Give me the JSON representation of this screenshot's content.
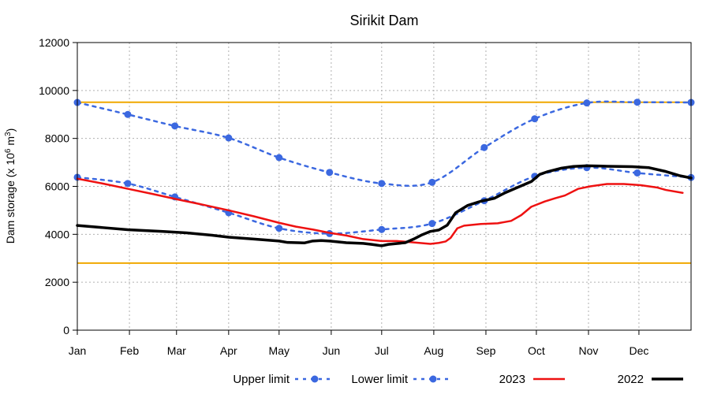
{
  "chart_data": {
    "type": "line",
    "title": "Sirikit Dam",
    "ylabel_main": "Dam storage (x 10",
    "ylabel_exp1": "6",
    "ylabel_unit": " m",
    "ylabel_exp2": "3",
    "ylabel_close": ")",
    "xlabel": "",
    "ylim": [
      0,
      12000
    ],
    "xlim": [
      0,
      365
    ],
    "y_ticks": [
      0,
      2000,
      4000,
      6000,
      8000,
      10000,
      12000
    ],
    "x_ticks": [
      {
        "label": "Jan",
        "day": 0
      },
      {
        "label": "Feb",
        "day": 31
      },
      {
        "label": "Mar",
        "day": 59
      },
      {
        "label": "Apr",
        "day": 90
      },
      {
        "label": "May",
        "day": 120
      },
      {
        "label": "Jun",
        "day": 151
      },
      {
        "label": "Jul",
        "day": 181
      },
      {
        "label": "Aug",
        "day": 212
      },
      {
        "label": "Sep",
        "day": 243
      },
      {
        "label": "Oct",
        "day": 273
      },
      {
        "label": "Nov",
        "day": 304
      },
      {
        "label": "Dec",
        "day": 334
      }
    ],
    "grid": true,
    "legend_position": "bottom",
    "reference_lines": [
      {
        "y": 9510,
        "color": "#f0a800"
      },
      {
        "y": 2800,
        "color": "#f0a800"
      }
    ],
    "series": [
      {
        "name": "Upper limit",
        "style": "dashed-markers",
        "color": "#3b68e0",
        "x": [
          0,
          30,
          58,
          90,
          120,
          150,
          181,
          211,
          242,
          272,
          303,
          333,
          365
        ],
        "y": [
          9500,
          9000,
          8520,
          8020,
          7200,
          6580,
          6120,
          6170,
          7620,
          8820,
          9480,
          9510,
          9500
        ]
      },
      {
        "name": "Lower limit",
        "style": "dashed-markers",
        "color": "#3b68e0",
        "x": [
          0,
          30,
          58,
          90,
          120,
          150,
          181,
          211,
          242,
          272,
          303,
          333,
          365
        ],
        "y": [
          6380,
          6120,
          5560,
          4900,
          4250,
          4030,
          4200,
          4450,
          5400,
          6420,
          6780,
          6560,
          6370
        ]
      },
      {
        "name": "2023",
        "style": "solid",
        "color": "#ee1111",
        "x": [
          0,
          15,
          30,
          45,
          60,
          75,
          90,
          105,
          120,
          130,
          140,
          150,
          160,
          170,
          181,
          190,
          200,
          210,
          215,
          219,
          222,
          226,
          230,
          240,
          250,
          258,
          264,
          270,
          278,
          284,
          290,
          298,
          305,
          315,
          325,
          335,
          345,
          350,
          360
        ],
        "y": [
          6320,
          6120,
          5900,
          5680,
          5450,
          5230,
          5000,
          4750,
          4480,
          4320,
          4200,
          4060,
          3950,
          3800,
          3720,
          3720,
          3660,
          3600,
          3640,
          3700,
          3850,
          4250,
          4360,
          4430,
          4460,
          4560,
          4800,
          5150,
          5370,
          5500,
          5620,
          5900,
          6000,
          6100,
          6100,
          6050,
          5950,
          5850,
          5730
        ]
      },
      {
        "name": "2022",
        "style": "thick",
        "color": "#000000",
        "x": [
          0,
          15,
          30,
          50,
          65,
          80,
          90,
          105,
          120,
          125,
          135,
          140,
          145,
          150,
          160,
          170,
          175,
          181,
          185,
          195,
          200,
          205,
          210,
          215,
          220,
          225,
          232,
          240,
          248,
          254,
          260,
          270,
          275,
          280,
          288,
          295,
          303,
          315,
          330,
          340,
          350,
          358,
          365
        ],
        "y": [
          4370,
          4280,
          4190,
          4120,
          4060,
          3960,
          3880,
          3800,
          3720,
          3660,
          3640,
          3720,
          3740,
          3720,
          3650,
          3620,
          3580,
          3520,
          3580,
          3650,
          3800,
          3980,
          4120,
          4180,
          4380,
          4900,
          5200,
          5380,
          5500,
          5720,
          5900,
          6200,
          6500,
          6620,
          6760,
          6830,
          6860,
          6840,
          6820,
          6780,
          6620,
          6450,
          6350
        ]
      }
    ]
  }
}
